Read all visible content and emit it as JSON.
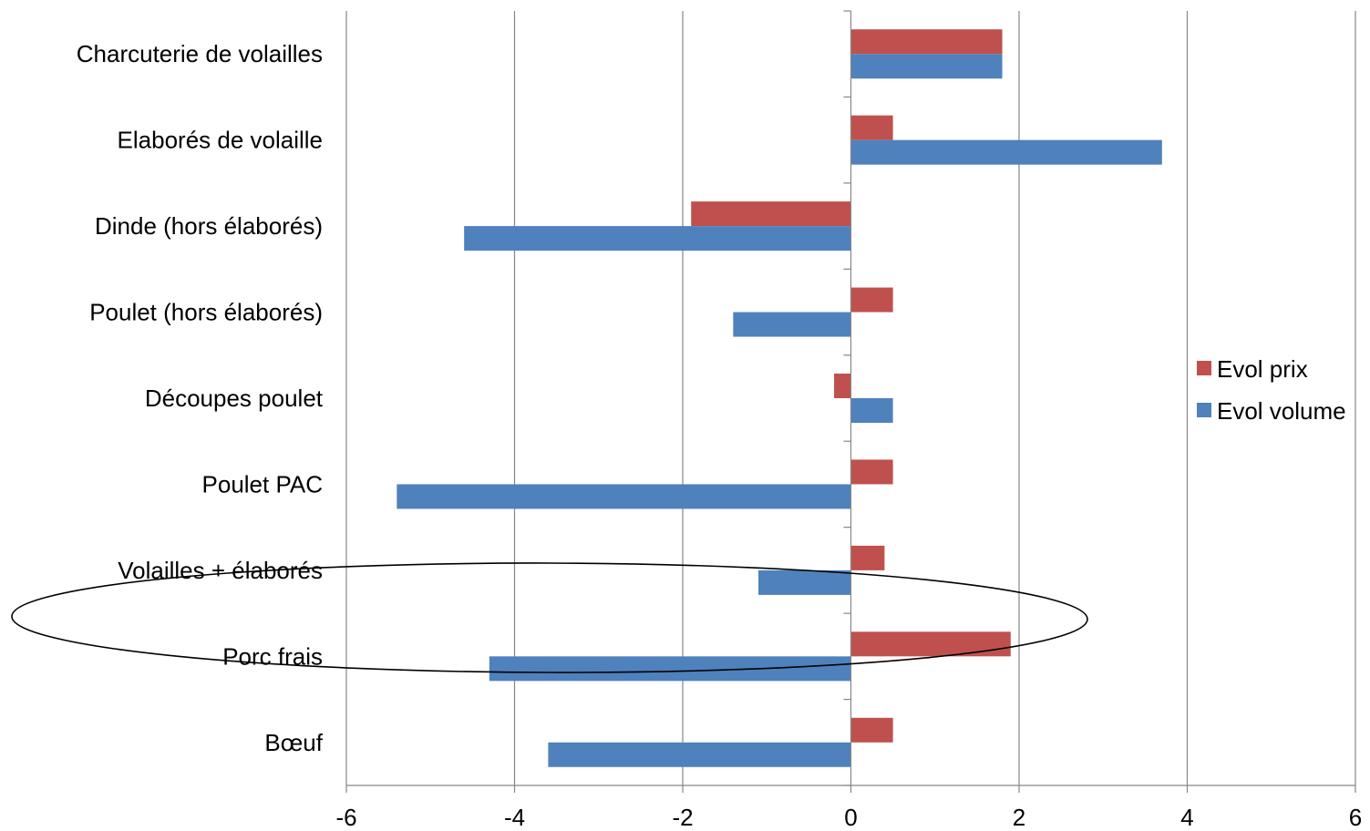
{
  "chart_data": {
    "type": "bar",
    "orientation": "horizontal",
    "categories": [
      "Charcuterie de volailles",
      "Elaborés de volaille",
      "Dinde (hors élaborés)",
      "Poulet (hors élaborés)",
      "Découpes poulet",
      "Poulet PAC",
      "Volailles + élaborés",
      "Porc frais",
      "Bœuf"
    ],
    "series": [
      {
        "name": "Evol prix",
        "color": "#C0504D",
        "values": [
          1.8,
          0.5,
          -1.9,
          0.5,
          -0.2,
          0.5,
          0.4,
          1.9,
          0.5
        ]
      },
      {
        "name": "Evol volume",
        "color": "#4F81BD",
        "values": [
          1.8,
          3.7,
          -4.6,
          -1.4,
          0.5,
          -5.4,
          -1.1,
          -4.3,
          -3.6
        ]
      }
    ],
    "xlim": [
      -6,
      6
    ],
    "xticks": [
      "-6",
      "-4",
      "-2",
      "0",
      "2",
      "4",
      "6"
    ],
    "grid": "vertical",
    "legend_position": "right",
    "annotation": "ellipse",
    "gridline_color": "#878787"
  }
}
